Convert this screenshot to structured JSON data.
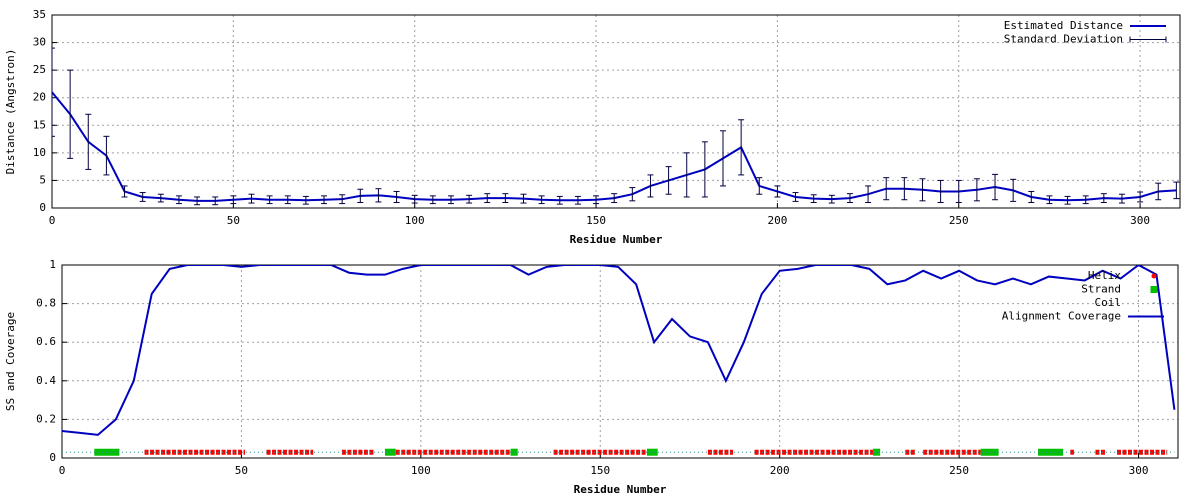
{
  "chart_data": [
    {
      "type": "line",
      "xlabel": "Residue Number",
      "ylabel": "Distance (Angstron)",
      "xlim": [
        0,
        311
      ],
      "ylim": [
        0,
        35
      ],
      "xticks": [
        0,
        50,
        100,
        150,
        200,
        250,
        300
      ],
      "yticks": [
        0,
        5,
        10,
        15,
        20,
        25,
        30,
        35
      ],
      "grid": true,
      "legend": "top right",
      "x": [
        0,
        5,
        10,
        15,
        20,
        25,
        30,
        35,
        40,
        45,
        50,
        55,
        60,
        65,
        70,
        75,
        80,
        85,
        90,
        95,
        100,
        105,
        110,
        115,
        120,
        125,
        130,
        135,
        140,
        145,
        150,
        155,
        160,
        165,
        170,
        175,
        180,
        185,
        190,
        195,
        200,
        205,
        210,
        215,
        220,
        225,
        230,
        235,
        240,
        245,
        250,
        255,
        260,
        265,
        270,
        275,
        280,
        285,
        290,
        295,
        300,
        305,
        310
      ],
      "series": [
        {
          "name": "Estimated Distance",
          "color": "#0000c0",
          "values": [
            21,
            17,
            12,
            9.5,
            3,
            2,
            1.8,
            1.5,
            1.3,
            1.3,
            1.5,
            1.7,
            1.5,
            1.5,
            1.4,
            1.5,
            1.6,
            2.2,
            2.3,
            2,
            1.6,
            1.5,
            1.5,
            1.6,
            1.8,
            1.8,
            1.7,
            1.5,
            1.4,
            1.4,
            1.5,
            1.8,
            2.5,
            4,
            5,
            6,
            7,
            9,
            11,
            4,
            3,
            2,
            1.7,
            1.6,
            1.8,
            2.5,
            3.5,
            3.5,
            3.3,
            3,
            3,
            3.3,
            3.8,
            3.2,
            2,
            1.5,
            1.4,
            1.5,
            1.8,
            1.7,
            2,
            3,
            3.2
          ]
        },
        {
          "name": "Standard Deviation",
          "color": "#000040",
          "errors": [
            8,
            8,
            5,
            3.5,
            1,
            0.8,
            0.7,
            0.7,
            0.7,
            0.7,
            0.7,
            0.8,
            0.7,
            0.7,
            0.7,
            0.7,
            0.8,
            1.2,
            1.2,
            1,
            0.7,
            0.7,
            0.7,
            0.7,
            0.8,
            0.8,
            0.8,
            0.7,
            0.7,
            0.7,
            0.7,
            0.8,
            1.2,
            2,
            2.5,
            4,
            5,
            5,
            5,
            1.5,
            1,
            0.8,
            0.7,
            0.7,
            0.8,
            1.5,
            2,
            2,
            2,
            2,
            2,
            2,
            2.3,
            2,
            1,
            0.7,
            0.7,
            0.7,
            0.8,
            0.8,
            0.9,
            1.5,
            1.5
          ]
        }
      ]
    },
    {
      "type": "line",
      "xlabel": "Residue Number",
      "ylabel": "SS and Coverage",
      "xlim": [
        0,
        311
      ],
      "ylim": [
        0,
        1
      ],
      "xticks": [
        0,
        50,
        100,
        150,
        200,
        250,
        300
      ],
      "yticks": [
        0,
        0.2,
        0.4,
        0.6,
        0.8,
        1
      ],
      "grid": true,
      "legend": "top right",
      "x": [
        0,
        5,
        10,
        15,
        20,
        25,
        30,
        35,
        40,
        45,
        50,
        55,
        60,
        65,
        70,
        75,
        80,
        85,
        90,
        95,
        100,
        105,
        110,
        115,
        120,
        125,
        130,
        135,
        140,
        145,
        150,
        155,
        160,
        165,
        170,
        175,
        180,
        185,
        190,
        195,
        200,
        205,
        210,
        215,
        220,
        225,
        230,
        235,
        240,
        245,
        250,
        255,
        260,
        265,
        270,
        275,
        280,
        285,
        290,
        295,
        300,
        305,
        310
      ],
      "series": [
        {
          "name": "Helix",
          "color": "#ff0000",
          "level": 0.03,
          "ranges": [
            [
              23,
              51
            ],
            [
              57,
              70
            ],
            [
              78,
              87
            ],
            [
              93,
              125
            ],
            [
              137,
              163
            ],
            [
              180,
              187
            ],
            [
              193,
              226
            ],
            [
              235,
              238
            ],
            [
              240,
              256
            ],
            [
              281,
              282
            ],
            [
              288,
              291
            ],
            [
              294,
              308
            ]
          ]
        },
        {
          "name": "Strand",
          "color": "#00c000",
          "level": 0.03,
          "ranges": [
            [
              9,
              16
            ],
            [
              90,
              93
            ],
            [
              125,
              127
            ],
            [
              163,
              166
            ],
            [
              226,
              228
            ],
            [
              256,
              261
            ],
            [
              272,
              279
            ]
          ]
        },
        {
          "name": "Coil",
          "color": "#2f8f8f",
          "level": 0.03,
          "ranges": [
            [
              0,
              310
            ]
          ]
        },
        {
          "name": "Alignment Coverage",
          "color": "#0000c0",
          "values": [
            0.14,
            0.13,
            0.12,
            0.2,
            0.4,
            0.85,
            0.98,
            1,
            1,
            1,
            0.99,
            1,
            1,
            1,
            1,
            1,
            0.96,
            0.95,
            0.95,
            0.98,
            1,
            1,
            1,
            1,
            1,
            1,
            0.95,
            0.99,
            1,
            1,
            1,
            0.99,
            0.9,
            0.6,
            0.72,
            0.63,
            0.6,
            0.4,
            0.6,
            0.85,
            0.97,
            0.98,
            1,
            1,
            1,
            0.98,
            0.9,
            0.92,
            0.97,
            0.93,
            0.97,
            0.92,
            0.9,
            0.93,
            0.9,
            0.94,
            0.93,
            0.92,
            0.97,
            0.93,
            1,
            0.95,
            0.25
          ]
        }
      ]
    }
  ]
}
